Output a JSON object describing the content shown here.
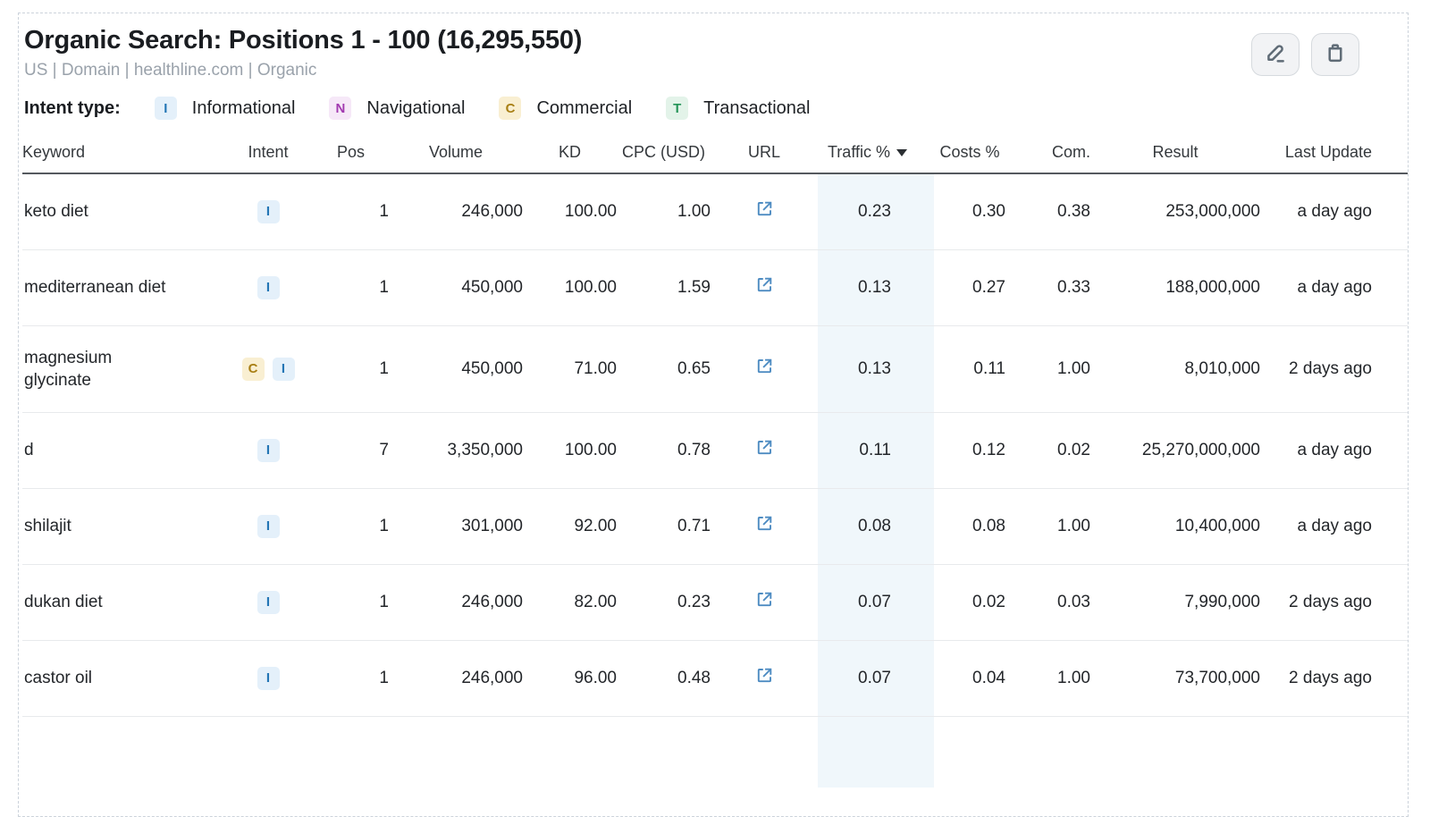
{
  "header": {
    "title": "Organic Search: Positions 1 - 100 (16,295,550)",
    "breadcrumb": "US | Domain | healthline.com | Organic"
  },
  "intent_legend": {
    "label": "Intent type:",
    "items": [
      {
        "code": "I",
        "label": "Informational",
        "color": "#2476b5",
        "bg": "#e4f0fa"
      },
      {
        "code": "N",
        "label": "Navigational",
        "color": "#a23ab0",
        "bg": "#f6e8f8"
      },
      {
        "code": "C",
        "label": "Commercial",
        "color": "#a87f15",
        "bg": "#f9efd2"
      },
      {
        "code": "T",
        "label": "Transactional",
        "color": "#259458",
        "bg": "#e3f3e9"
      }
    ]
  },
  "table": {
    "columns": [
      {
        "label": "Keyword"
      },
      {
        "label": "Intent"
      },
      {
        "label": "Pos"
      },
      {
        "label": "Volume"
      },
      {
        "label": "KD"
      },
      {
        "label": "CPC (USD)"
      },
      {
        "label": "URL"
      },
      {
        "label": "Traffic %"
      },
      {
        "label": "Costs %"
      },
      {
        "label": "Com."
      },
      {
        "label": "Result"
      },
      {
        "label": "Last Update"
      }
    ],
    "sort": {
      "column": "Traffic %",
      "direction": "desc"
    },
    "highlight_color": "#f0f7fb",
    "link_icon_color": "#4e8cc2",
    "rows": [
      {
        "keyword": "keto diet",
        "intents": [
          "I"
        ],
        "pos": "1",
        "volume": "246,000",
        "kd": "100.00",
        "cpc": "1.00",
        "traffic": "0.23",
        "costs": "0.30",
        "com": "0.38",
        "result": "253,000,000",
        "last_update": "a day ago"
      },
      {
        "keyword": "mediterranean diet",
        "intents": [
          "I"
        ],
        "pos": "1",
        "volume": "450,000",
        "kd": "100.00",
        "cpc": "1.59",
        "traffic": "0.13",
        "costs": "0.27",
        "com": "0.33",
        "result": "188,000,000",
        "last_update": "a day ago"
      },
      {
        "keyword": "magnesium\nglycinate",
        "intents": [
          "C",
          "I"
        ],
        "pos": "1",
        "volume": "450,000",
        "kd": "71.00",
        "cpc": "0.65",
        "traffic": "0.13",
        "costs": "0.11",
        "com": "1.00",
        "result": "8,010,000",
        "last_update": "2 days ago"
      },
      {
        "keyword": "d",
        "intents": [
          "I"
        ],
        "pos": "7",
        "volume": "3,350,000",
        "kd": "100.00",
        "cpc": "0.78",
        "traffic": "0.11",
        "costs": "0.12",
        "com": "0.02",
        "result": "25,270,000,000",
        "last_update": "a day ago"
      },
      {
        "keyword": "shilajit",
        "intents": [
          "I"
        ],
        "pos": "1",
        "volume": "301,000",
        "kd": "92.00",
        "cpc": "0.71",
        "traffic": "0.08",
        "costs": "0.08",
        "com": "1.00",
        "result": "10,400,000",
        "last_update": "a day ago"
      },
      {
        "keyword": "dukan diet",
        "intents": [
          "I"
        ],
        "pos": "1",
        "volume": "246,000",
        "kd": "82.00",
        "cpc": "0.23",
        "traffic": "0.07",
        "costs": "0.02",
        "com": "0.03",
        "result": "7,990,000",
        "last_update": "2 days ago"
      },
      {
        "keyword": "castor oil",
        "intents": [
          "I"
        ],
        "pos": "1",
        "volume": "246,000",
        "kd": "96.00",
        "cpc": "0.48",
        "traffic": "0.07",
        "costs": "0.04",
        "com": "1.00",
        "result": "73,700,000",
        "last_update": "2 days ago"
      }
    ]
  }
}
